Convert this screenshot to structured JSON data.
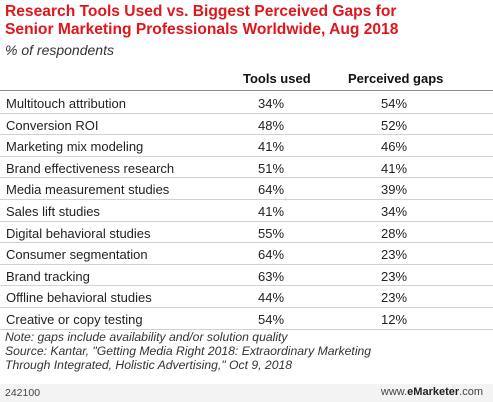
{
  "chart_data": {
    "type": "table",
    "title_lines": [
      "Research Tools Used vs. Biggest Perceived Gaps for",
      "Senior Marketing Professionals Worldwide, Aug 2018"
    ],
    "subtitle": "% of respondents",
    "columns": [
      "Tools used",
      "Perceived gaps"
    ],
    "rows": [
      {
        "label": "Multitouch attribution",
        "tools_used": "34%",
        "perceived_gaps": "54%"
      },
      {
        "label": "Conversion ROI",
        "tools_used": "48%",
        "perceived_gaps": "52%"
      },
      {
        "label": "Marketing mix modeling",
        "tools_used": "41%",
        "perceived_gaps": "46%"
      },
      {
        "label": "Brand effectiveness research",
        "tools_used": "51%",
        "perceived_gaps": "41%"
      },
      {
        "label": "Media measurement studies",
        "tools_used": "64%",
        "perceived_gaps": "39%"
      },
      {
        "label": "Sales lift studies",
        "tools_used": "41%",
        "perceived_gaps": "34%"
      },
      {
        "label": "Digital behavioral studies",
        "tools_used": "55%",
        "perceived_gaps": "28%"
      },
      {
        "label": "Consumer segmentation",
        "tools_used": "64%",
        "perceived_gaps": "23%"
      },
      {
        "label": "Brand tracking",
        "tools_used": "63%",
        "perceived_gaps": "23%"
      },
      {
        "label": "Offline behavioral studies",
        "tools_used": "44%",
        "perceived_gaps": "23%"
      },
      {
        "label": "Creative or copy testing",
        "tools_used": "54%",
        "perceived_gaps": "12%"
      }
    ]
  },
  "notes": [
    "Note: gaps include availability and/or solution quality",
    "Source: Kantar, \"Getting Media Right 2018: Extraordinary Marketing",
    "Through Integrated, Holistic Advertising,\" Oct 9, 2018"
  ],
  "footer": {
    "chart_id": "242100",
    "brand_prefix": "www.",
    "brand_name": "eMarketer",
    "brand_suffix": ".com"
  },
  "colors": {
    "title": "#e0161d",
    "row_divider": "#d2d2d2",
    "footer_bg": "#f3f3f3"
  }
}
